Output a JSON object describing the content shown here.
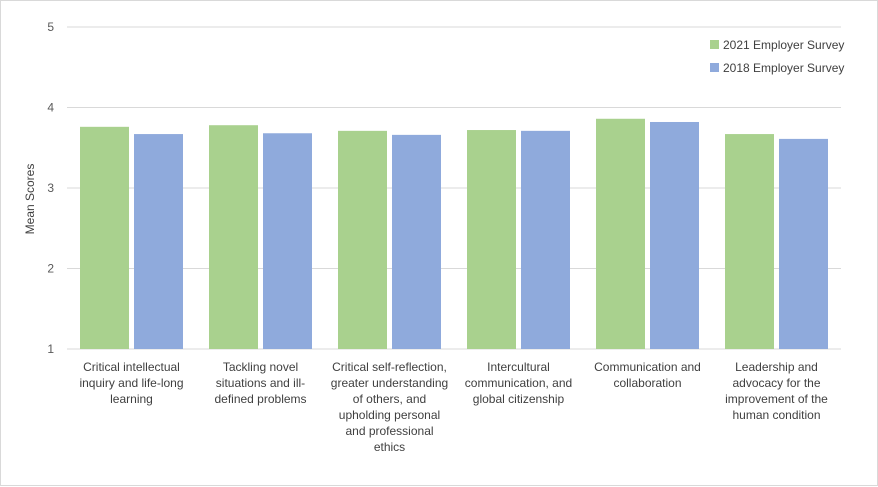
{
  "chart_data": {
    "type": "bar",
    "ylabel": "Mean Scores",
    "ylim": [
      1,
      5
    ],
    "yticks": [
      1,
      2,
      3,
      4,
      5
    ],
    "grid": true,
    "legend_position": "top-right",
    "categories": [
      [
        "Critical intellectual",
        "inquiry and life-long",
        "learning"
      ],
      [
        "Tackling novel",
        "situations and ill-",
        "defined problems"
      ],
      [
        "Critical self-reflection,",
        "greater understanding",
        "of others, and",
        "upholding personal",
        "and professional",
        "ethics"
      ],
      [
        "Intercultural",
        "communication, and",
        "global citizenship"
      ],
      [
        "Communication and",
        "collaboration"
      ],
      [
        "Leadership and",
        "advocacy for the",
        "improvement of the",
        "human condition"
      ]
    ],
    "series": [
      {
        "name": "2021 Employer Survey",
        "color": "#a9d18e",
        "values": [
          3.76,
          3.78,
          3.71,
          3.72,
          3.86,
          3.67
        ]
      },
      {
        "name": "2018 Employer Survey",
        "color": "#8faadc",
        "values": [
          3.67,
          3.68,
          3.66,
          3.71,
          3.82,
          3.61
        ]
      }
    ]
  }
}
